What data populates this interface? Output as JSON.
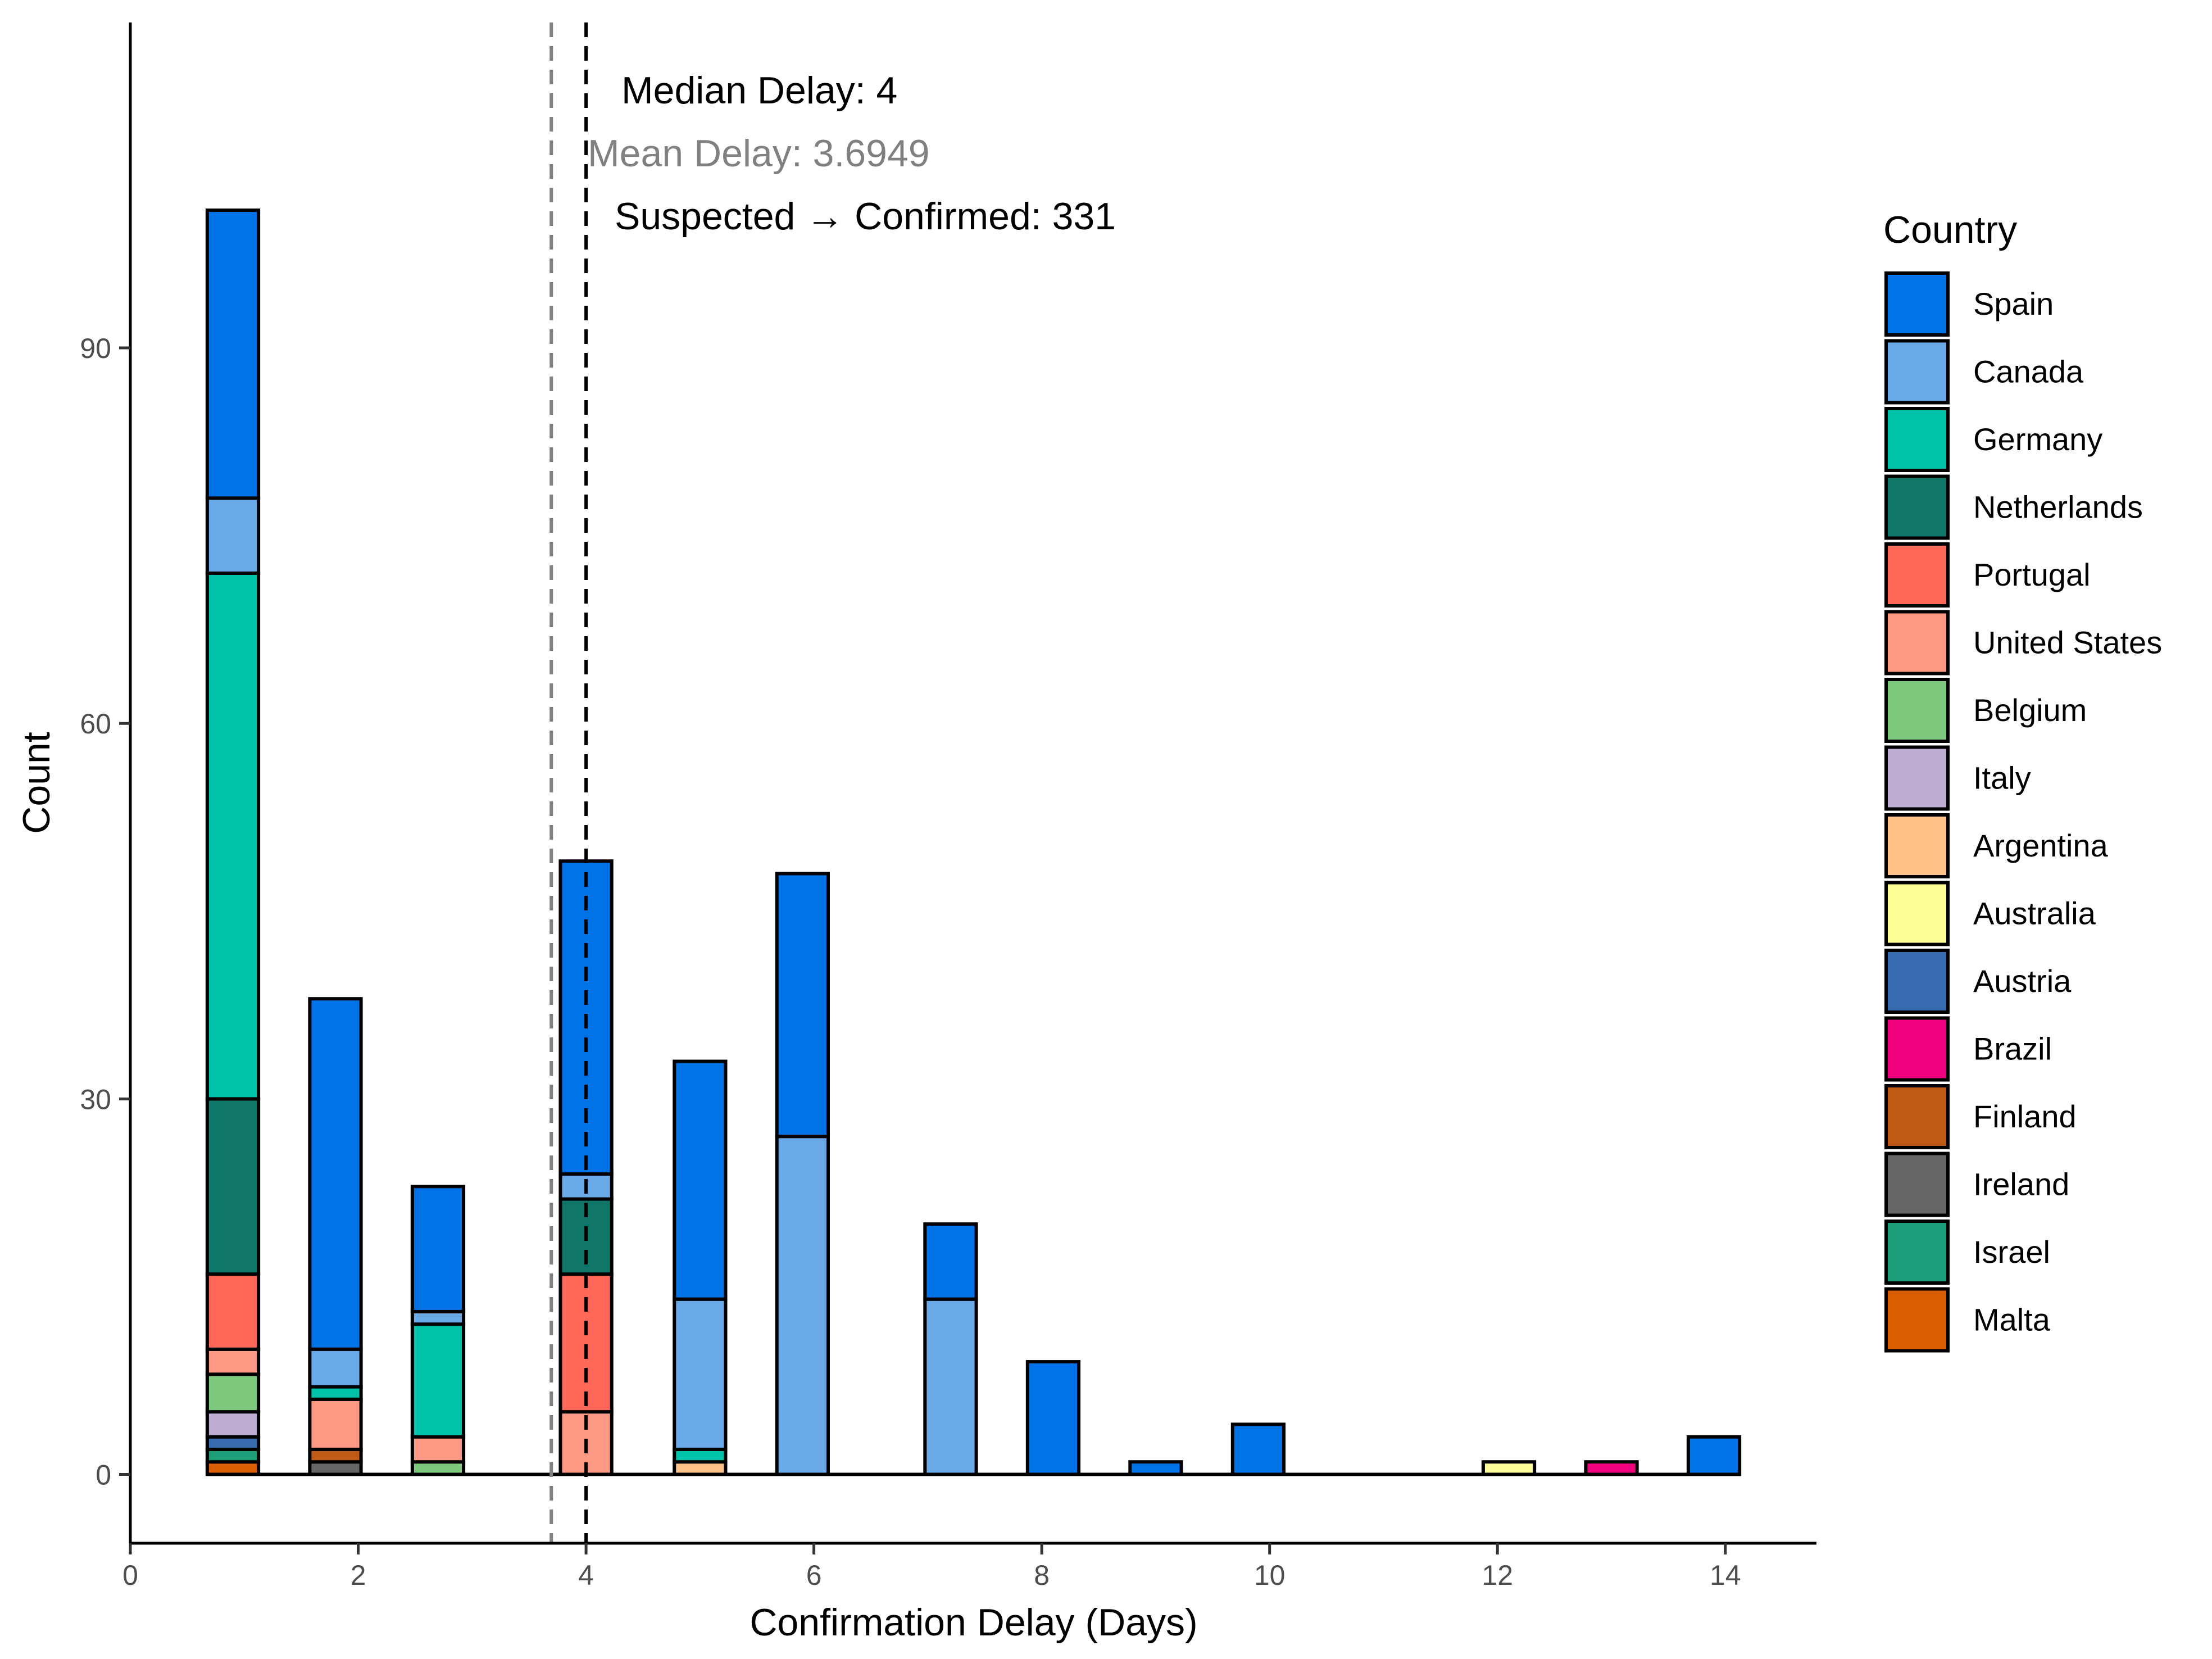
{
  "chart_data": {
    "type": "bar",
    "stacked": true,
    "xlabel": "Confirmation Delay (Days)",
    "ylabel": "Count",
    "xlim": [
      0,
      14.8
    ],
    "ylim": [
      -5.5,
      116
    ],
    "x_ticks": [
      0,
      2,
      4,
      6,
      8,
      10,
      12,
      14
    ],
    "y_ticks": [
      0,
      30,
      60,
      90
    ],
    "grid": false,
    "legend_title": "Country",
    "legend_position": "right",
    "series": [
      {
        "name": "Spain",
        "color": "#0073E6"
      },
      {
        "name": "Canada",
        "color": "#6AAAE8"
      },
      {
        "name": "Germany",
        "color": "#00C4AA"
      },
      {
        "name": "Netherlands",
        "color": "#117869"
      },
      {
        "name": "Portugal",
        "color": "#FF6859"
      },
      {
        "name": "United States",
        "color": "#FC9883"
      },
      {
        "name": "Belgium",
        "color": "#7FC97F"
      },
      {
        "name": "Italy",
        "color": "#BEAED4"
      },
      {
        "name": "Argentina",
        "color": "#FDC086"
      },
      {
        "name": "Australia",
        "color": "#FFFF99"
      },
      {
        "name": "Austria",
        "color": "#386CB0"
      },
      {
        "name": "Brazil",
        "color": "#F0027F"
      },
      {
        "name": "Finland",
        "color": "#BF5B17"
      },
      {
        "name": "Ireland",
        "color": "#666666"
      },
      {
        "name": "Israel",
        "color": "#1B9E77"
      },
      {
        "name": "Malta",
        "color": "#D95F02"
      }
    ],
    "bars": [
      {
        "x": 0.9,
        "stack": {
          "Spain": 23,
          "Canada": 6,
          "Germany": 42,
          "Netherlands": 14,
          "Portugal": 6,
          "United States": 2,
          "Belgium": 3,
          "Italy": 2,
          "Austria": 1,
          "Israel": 1,
          "Malta": 1
        }
      },
      {
        "x": 1.8,
        "stack": {
          "Spain": 28,
          "Canada": 3,
          "Germany": 1,
          "United States": 4,
          "Finland": 1,
          "Ireland": 1
        }
      },
      {
        "x": 2.7,
        "stack": {
          "Spain": 10,
          "Canada": 1,
          "Germany": 9,
          "United States": 2,
          "Belgium": 1
        }
      },
      {
        "x": 4.0,
        "stack": {
          "Spain": 25,
          "Canada": 2,
          "Netherlands": 6,
          "Portugal": 11,
          "United States": 5
        }
      },
      {
        "x": 5.0,
        "stack": {
          "Spain": 19,
          "Canada": 12,
          "Germany": 1,
          "Argentina": 1
        }
      },
      {
        "x": 5.9,
        "stack": {
          "Spain": 21,
          "Canada": 27
        }
      },
      {
        "x": 7.2,
        "stack": {
          "Spain": 6,
          "Canada": 14
        }
      },
      {
        "x": 8.1,
        "stack": {
          "Spain": 9
        }
      },
      {
        "x": 9.0,
        "stack": {
          "Spain": 1
        }
      },
      {
        "x": 9.9,
        "stack": {
          "Spain": 4
        }
      },
      {
        "x": 12.1,
        "stack": {
          "Australia": 1
        }
      },
      {
        "x": 13.0,
        "stack": {
          "Brazil": 1
        }
      },
      {
        "x": 13.9,
        "stack": {
          "Spain": 3
        }
      }
    ],
    "bar_width": 0.45,
    "reference_lines": [
      {
        "name": "median",
        "x": 4,
        "color": "#000000"
      },
      {
        "name": "mean",
        "x": 3.6949,
        "color": "#808080"
      }
    ],
    "annotations": {
      "median": "Median Delay: 4",
      "mean": "Mean Delay: 3.6949",
      "transition": "Suspected → Confirmed: 331"
    }
  }
}
